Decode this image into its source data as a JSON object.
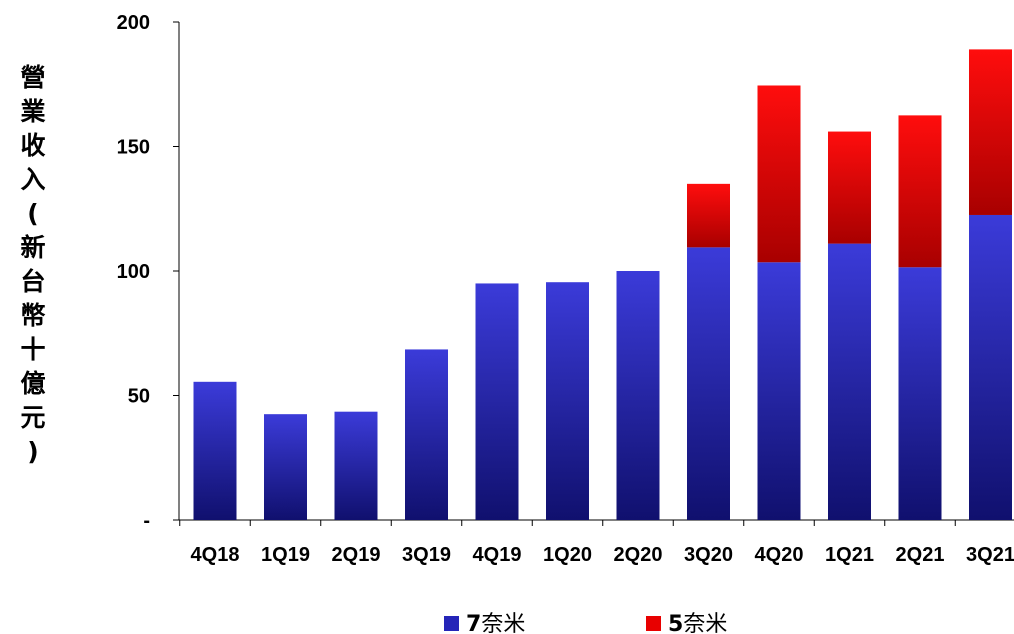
{
  "chart_data": {
    "type": "bar",
    "stacked": true,
    "categories": [
      "4Q18",
      "1Q19",
      "2Q19",
      "3Q19",
      "4Q19",
      "1Q20",
      "2Q20",
      "3Q20",
      "4Q20",
      "1Q21",
      "2Q21",
      "3Q21"
    ],
    "series": [
      {
        "name": "7奈米",
        "values": [
          55.5,
          42.5,
          43.5,
          68.5,
          95,
          95.5,
          100,
          109.5,
          103.5,
          111,
          101.5,
          122.5
        ]
      },
      {
        "name": "5奈米",
        "values": [
          0,
          0,
          0,
          0,
          0,
          0,
          0,
          25.5,
          71,
          45,
          61,
          66.5
        ]
      }
    ],
    "ylabel": "營業收入(新台幣十億元)",
    "xlabel": "",
    "ylim": [
      0,
      200
    ],
    "yticks": [
      0,
      50,
      100,
      150,
      200
    ],
    "ytick_labels": [
      "-",
      "50",
      "100",
      "150",
      "200"
    ],
    "legend_position": "bottom",
    "grid": false,
    "colors": {
      "7奈米": "#2525b8",
      "5奈米": "#e80000"
    }
  }
}
